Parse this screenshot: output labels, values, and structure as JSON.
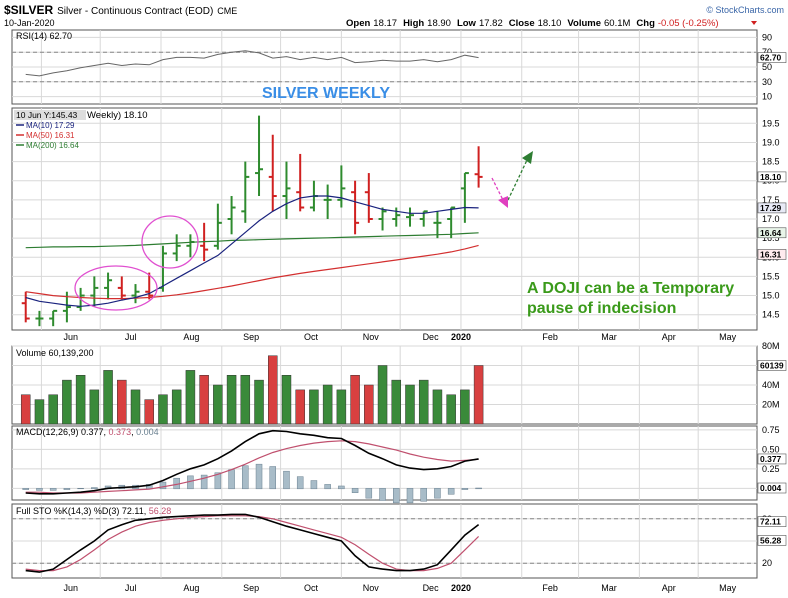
{
  "header": {
    "symbol": "$SILVER",
    "name": "Silver - Continuous Contract (EOD)",
    "exchange": "CME",
    "date": "10-Jan-2020",
    "brand": "© StockCharts.com",
    "open_label": "Open",
    "open": "18.17",
    "high_label": "High",
    "high": "18.90",
    "low_label": "Low",
    "low": "17.82",
    "close_label": "Close",
    "close": "18.10",
    "volume_label": "Volume",
    "volume": "60.1M",
    "chg_label": "Chg",
    "chg": "-0.05 (-0.25%)"
  },
  "colors": {
    "up": "#2e8b2e",
    "down": "#d02020",
    "ma10": "#1a237e",
    "ma50": "#d32f2f",
    "ma200": "#2e7d32",
    "title": "#3a8ee6",
    "annotation": "#3a9a1a",
    "circle": "#e050d0",
    "arrow_up": "#2e7d32",
    "arrow_down": "#e040c0",
    "grid": "#d8d8d8",
    "pane_border": "#555555"
  },
  "chart_title": "SILVER WEEKLY",
  "annotation": [
    "A DOJI can be a Temporary",
    "pause of indecision"
  ],
  "x_axis": {
    "months": [
      "Jun",
      "Jul",
      "Aug",
      "Sep",
      "Oct",
      "Nov",
      "Dec",
      "2020",
      "Feb",
      "Mar",
      "Apr",
      "May"
    ]
  },
  "chart_data": [
    {
      "type": "candlestick",
      "pane": "price",
      "overlay": "10 Jun Y:145.43",
      "legend_title": "Weekly) 18.10",
      "legend": [
        {
          "label": "MA(10) 17.29",
          "color": "#1a237e"
        },
        {
          "label": "MA(50) 16.31",
          "color": "#d32f2f"
        },
        {
          "label": "MA(200) 16.64",
          "color": "#2e7d32"
        }
      ],
      "y_ticks": [
        "19.5",
        "19.0",
        "18.5",
        "18.0",
        "17.5",
        "17.0",
        "16.5",
        "16.0",
        "15.5",
        "15.0",
        "14.5"
      ],
      "ylim": [
        14.1,
        19.9
      ],
      "last_labels": [
        "18.10",
        "17.29",
        "16.64",
        "16.31"
      ],
      "x": [
        "2019-05-24",
        "2019-05-31",
        "2019-06-07",
        "2019-06-14",
        "2019-06-21",
        "2019-06-28",
        "2019-07-05",
        "2019-07-12",
        "2019-07-19",
        "2019-07-26",
        "2019-08-02",
        "2019-08-09",
        "2019-08-16",
        "2019-08-23",
        "2019-08-30",
        "2019-09-06",
        "2019-09-13",
        "2019-09-20",
        "2019-09-27",
        "2019-10-04",
        "2019-10-11",
        "2019-10-18",
        "2019-10-25",
        "2019-11-01",
        "2019-11-08",
        "2019-11-15",
        "2019-11-22",
        "2019-11-29",
        "2019-12-06",
        "2019-12-13",
        "2019-12-20",
        "2019-12-27",
        "2020-01-03",
        "2020-01-10"
      ],
      "open": [
        14.8,
        14.4,
        14.4,
        14.6,
        14.7,
        15.0,
        15.2,
        15.2,
        15.0,
        15.1,
        15.2,
        16.1,
        16.3,
        16.3,
        16.3,
        17.0,
        17.2,
        18.2,
        18.1,
        17.6,
        17.7,
        17.3,
        17.5,
        17.5,
        17.7,
        17.7,
        17.0,
        17.0,
        17.05,
        17.0,
        16.9,
        17.0,
        17.8,
        18.17
      ],
      "high": [
        15.1,
        14.6,
        14.6,
        15.1,
        15.2,
        15.5,
        15.6,
        15.5,
        15.3,
        15.6,
        16.3,
        16.6,
        16.6,
        16.9,
        17.4,
        17.6,
        18.5,
        19.7,
        19.2,
        18.5,
        18.7,
        18.0,
        17.9,
        18.4,
        18.0,
        18.2,
        17.3,
        17.3,
        17.3,
        17.2,
        17.2,
        17.3,
        18.2,
        18.9
      ],
      "low": [
        14.3,
        14.2,
        14.2,
        14.3,
        14.6,
        14.7,
        14.9,
        14.9,
        14.8,
        14.9,
        15.1,
        15.9,
        16.0,
        15.9,
        16.2,
        16.6,
        16.9,
        17.6,
        17.2,
        17.0,
        17.2,
        17.2,
        17.0,
        17.3,
        16.6,
        16.9,
        16.7,
        16.8,
        16.8,
        16.8,
        16.5,
        16.5,
        16.9,
        17.82
      ],
      "close": [
        14.4,
        14.4,
        14.6,
        14.7,
        15.0,
        15.2,
        15.4,
        15.0,
        15.1,
        15.0,
        16.1,
        16.3,
        16.4,
        16.2,
        16.9,
        17.3,
        18.1,
        18.3,
        17.6,
        17.8,
        17.3,
        17.6,
        17.5,
        17.8,
        16.9,
        17.0,
        17.2,
        17.1,
        17.1,
        17.2,
        16.9,
        17.3,
        18.2,
        18.1
      ],
      "ma10": [
        14.95,
        14.85,
        14.8,
        14.75,
        14.72,
        14.75,
        14.8,
        14.88,
        14.95,
        15.05,
        15.25,
        15.45,
        15.65,
        15.85,
        16.05,
        16.35,
        16.65,
        16.95,
        17.2,
        17.4,
        17.55,
        17.6,
        17.6,
        17.55,
        17.45,
        17.35,
        17.25,
        17.2,
        17.15,
        17.15,
        17.2,
        17.25,
        17.3,
        17.29
      ],
      "ma50": [
        15.1,
        15.05,
        15.0,
        14.97,
        14.95,
        14.93,
        14.92,
        14.92,
        14.93,
        14.95,
        14.98,
        15.02,
        15.07,
        15.13,
        15.19,
        15.25,
        15.32,
        15.39,
        15.46,
        15.52,
        15.58,
        15.63,
        15.68,
        15.73,
        15.78,
        15.83,
        15.88,
        15.93,
        15.98,
        16.03,
        16.08,
        16.14,
        16.22,
        16.31
      ],
      "ma200": [
        16.25,
        16.26,
        16.27,
        16.27,
        16.28,
        16.28,
        16.29,
        16.3,
        16.31,
        16.33,
        16.35,
        16.37,
        16.39,
        16.41,
        16.42,
        16.44,
        16.45,
        16.46,
        16.47,
        16.48,
        16.49,
        16.5,
        16.51,
        16.52,
        16.53,
        16.54,
        16.55,
        16.56,
        16.57,
        16.58,
        16.59,
        16.6,
        16.62,
        16.64
      ]
    },
    {
      "type": "line",
      "pane": "rsi",
      "label": "RSI(14) 62.70",
      "y_ticks": [
        "90",
        "70",
        "50",
        "30",
        "10"
      ],
      "ylim": [
        0,
        100
      ],
      "last_label": "62.70",
      "values": [
        40,
        38,
        42,
        45,
        49,
        52,
        55,
        52,
        54,
        53,
        60,
        63,
        63,
        62,
        67,
        70,
        72,
        69,
        62,
        64,
        60,
        63,
        60,
        63,
        56,
        57,
        59,
        58,
        58,
        60,
        57,
        60,
        66,
        62.7
      ]
    },
    {
      "type": "bar",
      "pane": "volume",
      "label": "Volume 60,139,200",
      "y_ticks": [
        "80M",
        "60M",
        "40M",
        "20M"
      ],
      "ylim": [
        0,
        80
      ],
      "last_label": "60139",
      "values": [
        30,
        25,
        30,
        45,
        50,
        35,
        55,
        45,
        35,
        25,
        30,
        35,
        55,
        50,
        40,
        50,
        50,
        45,
        70,
        50,
        35,
        35,
        40,
        35,
        50,
        40,
        60,
        45,
        40,
        45,
        35,
        30,
        35,
        60
      ]
    },
    {
      "type": "line",
      "pane": "macd",
      "label_parts": [
        "MACD(12,26,9) 0.377, ",
        "0.373",
        ", ",
        "0.004"
      ],
      "y_ticks": [
        "0.75",
        "0.50",
        "0.25",
        "0.00"
      ],
      "ylim": [
        -0.15,
        0.8
      ],
      "last_labels": [
        "0.377",
        "0.004"
      ],
      "macd": [
        -0.06,
        -0.07,
        -0.07,
        -0.06,
        -0.05,
        -0.03,
        0.0,
        0.01,
        0.02,
        0.04,
        0.1,
        0.18,
        0.25,
        0.3,
        0.38,
        0.48,
        0.6,
        0.7,
        0.74,
        0.73,
        0.7,
        0.68,
        0.65,
        0.64,
        0.55,
        0.45,
        0.38,
        0.3,
        0.26,
        0.24,
        0.25,
        0.28,
        0.35,
        0.377
      ],
      "signal": [
        -0.05,
        -0.05,
        -0.06,
        -0.06,
        -0.06,
        -0.05,
        -0.04,
        -0.03,
        -0.02,
        -0.01,
        0.02,
        0.05,
        0.09,
        0.13,
        0.18,
        0.24,
        0.31,
        0.39,
        0.46,
        0.51,
        0.55,
        0.58,
        0.6,
        0.61,
        0.6,
        0.57,
        0.53,
        0.49,
        0.44,
        0.4,
        0.37,
        0.35,
        0.36,
        0.373
      ],
      "histogram": [
        -0.01,
        -0.02,
        -0.02,
        -0.01,
        0.0,
        0.01,
        0.03,
        0.04,
        0.04,
        0.05,
        0.08,
        0.13,
        0.16,
        0.17,
        0.2,
        0.24,
        0.29,
        0.31,
        0.28,
        0.22,
        0.15,
        0.1,
        0.05,
        0.03,
        -0.05,
        -0.12,
        -0.15,
        -0.18,
        -0.18,
        -0.16,
        -0.12,
        -0.07,
        -0.01,
        0.004
      ]
    },
    {
      "type": "line",
      "pane": "stochastic",
      "label_parts": [
        "Full STO %K(14,3) %D(3) 72.11, ",
        "56.28"
      ],
      "y_ticks": [
        "80",
        "50",
        "20"
      ],
      "ylim": [
        0,
        100
      ],
      "last_labels": [
        "72.11",
        "56.28"
      ],
      "k": [
        10,
        8,
        12,
        25,
        38,
        50,
        65,
        72,
        78,
        80,
        82,
        83,
        84,
        85,
        85,
        86,
        86,
        82,
        76,
        70,
        65,
        60,
        55,
        50,
        30,
        15,
        12,
        10,
        10,
        12,
        18,
        38,
        58,
        72.11
      ],
      "d": [
        12,
        10,
        10,
        15,
        25,
        38,
        52,
        62,
        70,
        75,
        78,
        80,
        82,
        83,
        84,
        84,
        84,
        83,
        80,
        75,
        70,
        65,
        60,
        55,
        45,
        32,
        20,
        12,
        10,
        10,
        13,
        20,
        38,
        56.28
      ]
    }
  ]
}
